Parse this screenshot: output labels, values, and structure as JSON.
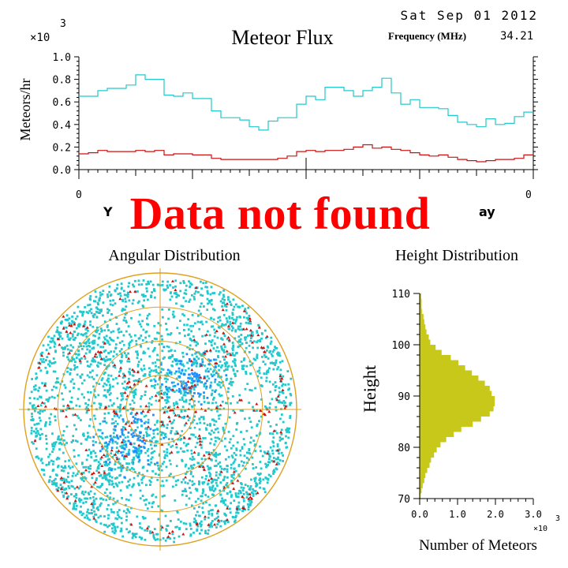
{
  "header": {
    "date": "Sat Sep 01 2012",
    "frequency_label": "Frequency (MHz)",
    "frequency_value": "34.21"
  },
  "overlay": {
    "message": "Data not found"
  },
  "colors": {
    "cyan": "#22c8cc",
    "red": "#cc1111",
    "blue": "#1e90ff",
    "gold": "#e0a020",
    "olive": "#c8c81a",
    "overlay_red": "#ff0000"
  },
  "chart_data": [
    {
      "type": "line",
      "title": "Meteor Flux",
      "ylabel": "Meteors/hr",
      "y_multiplier": "×10",
      "y_multiplier_exp": "3",
      "ylim": [
        0,
        1.0
      ],
      "ytick_labels": [
        "0.0",
        "0.2",
        "0.4",
        "0.6",
        "0.8",
        "1.0"
      ],
      "xtick_labels": [
        "0",
        "0"
      ],
      "xlabel_fragments": [
        "Y",
        "ay"
      ],
      "step": true,
      "series": [
        {
          "color": "cyan",
          "values": [
            0.65,
            0.65,
            0.7,
            0.72,
            0.72,
            0.75,
            0.84,
            0.8,
            0.8,
            0.66,
            0.65,
            0.68,
            0.63,
            0.63,
            0.52,
            0.46,
            0.46,
            0.44,
            0.38,
            0.35,
            0.43,
            0.46,
            0.46,
            0.58,
            0.65,
            0.62,
            0.73,
            0.73,
            0.7,
            0.65,
            0.7,
            0.73,
            0.81,
            0.68,
            0.58,
            0.62,
            0.55,
            0.55,
            0.54,
            0.48,
            0.42,
            0.4,
            0.38,
            0.45,
            0.4,
            0.41,
            0.47,
            0.51
          ]
        },
        {
          "color": "red",
          "values": [
            0.14,
            0.15,
            0.17,
            0.16,
            0.16,
            0.16,
            0.17,
            0.16,
            0.17,
            0.13,
            0.14,
            0.14,
            0.13,
            0.13,
            0.1,
            0.09,
            0.09,
            0.09,
            0.09,
            0.09,
            0.09,
            0.1,
            0.12,
            0.16,
            0.17,
            0.16,
            0.17,
            0.17,
            0.18,
            0.2,
            0.22,
            0.19,
            0.2,
            0.18,
            0.17,
            0.15,
            0.13,
            0.12,
            0.13,
            0.11,
            0.09,
            0.08,
            0.07,
            0.08,
            0.09,
            0.09,
            0.1,
            0.13
          ]
        }
      ]
    },
    {
      "type": "scatter",
      "title": "Angular Distribution",
      "projection": "polar",
      "rings": 4,
      "clusters": [
        {
          "color": "cyan",
          "dir_deg": 45
        },
        {
          "color": "cyan",
          "dir_deg": 135
        },
        {
          "color": "cyan",
          "dir_deg": 225
        },
        {
          "color": "cyan",
          "dir_deg": 315
        },
        {
          "color": "blue",
          "dir_deg": 45
        },
        {
          "color": "blue",
          "dir_deg": 225
        }
      ]
    },
    {
      "type": "bar",
      "orientation": "horizontal",
      "title": "Height Distribution",
      "ylabel": "Height",
      "xlabel": "Number of Meteors",
      "x_multiplier": "×10",
      "x_multiplier_exp": "3",
      "ylim": [
        70,
        110
      ],
      "xlim": [
        0,
        3.0
      ],
      "ytick_labels": [
        "70",
        "80",
        "90",
        "100",
        "110"
      ],
      "xtick_labels": [
        "0.0",
        "1.0",
        "2.0",
        "3.0"
      ],
      "bar_color": "olive",
      "heights": [
        70,
        71,
        72,
        73,
        74,
        75,
        76,
        77,
        78,
        79,
        80,
        81,
        82,
        83,
        84,
        85,
        86,
        87,
        88,
        89,
        90,
        91,
        92,
        93,
        94,
        95,
        96,
        97,
        98,
        99,
        100,
        101,
        102,
        103,
        104,
        105,
        106,
        107,
        108,
        109
      ],
      "values": [
        0.02,
        0.05,
        0.08,
        0.12,
        0.15,
        0.2,
        0.26,
        0.3,
        0.38,
        0.45,
        0.55,
        0.7,
        0.9,
        1.1,
        1.4,
        1.62,
        1.85,
        1.95,
        1.98,
        1.98,
        1.9,
        1.85,
        1.72,
        1.55,
        1.38,
        1.2,
        1.02,
        0.82,
        0.58,
        0.42,
        0.28,
        0.24,
        0.18,
        0.15,
        0.12,
        0.1,
        0.06,
        0.05,
        0.05,
        0.04
      ]
    }
  ]
}
